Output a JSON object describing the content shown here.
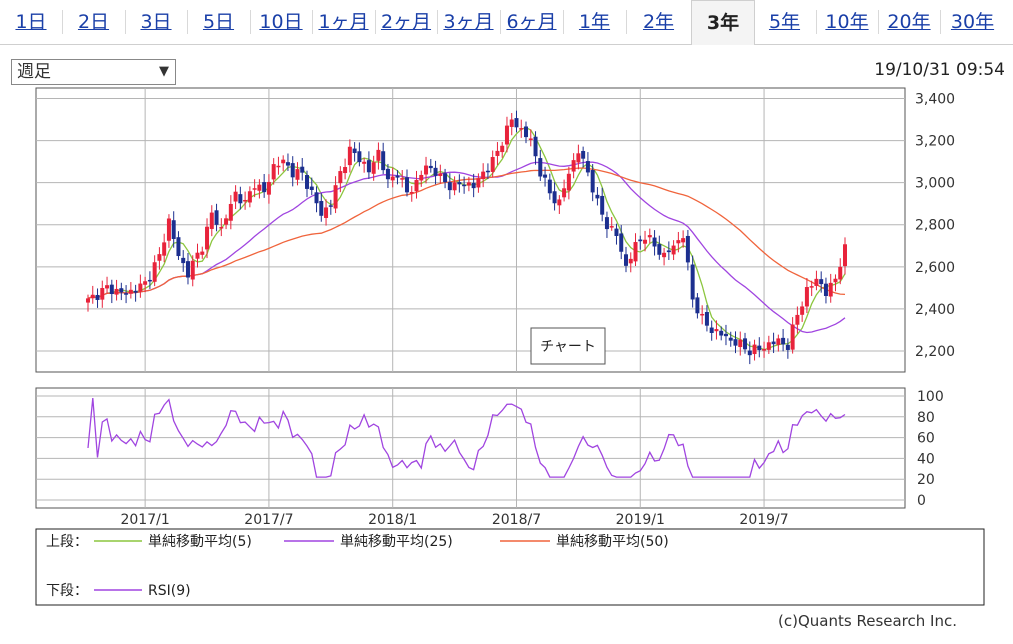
{
  "tabs": [
    {
      "label": "1日",
      "active": false
    },
    {
      "label": "2日",
      "active": false
    },
    {
      "label": "3日",
      "active": false
    },
    {
      "label": "5日",
      "active": false
    },
    {
      "label": "10日",
      "active": false
    },
    {
      "label": "1ヶ月",
      "active": false
    },
    {
      "label": "2ヶ月",
      "active": false
    },
    {
      "label": "3ヶ月",
      "active": false
    },
    {
      "label": "6ヶ月",
      "active": false
    },
    {
      "label": "1年",
      "active": false
    },
    {
      "label": "2年",
      "active": false
    },
    {
      "label": "3年",
      "active": true
    },
    {
      "label": "5年",
      "active": false
    },
    {
      "label": "10年",
      "active": false
    },
    {
      "label": "20年",
      "active": false
    },
    {
      "label": "30年",
      "active": false
    }
  ],
  "period_select": {
    "value": "週足",
    "arrow": "▼"
  },
  "timestamp": "19/10/31 09:54",
  "credit": "(c)Quants Research Inc.",
  "colors": {
    "up": "#e8233b",
    "down": "#1c2f8f",
    "ma5": "#8cc63f",
    "ma25": "#a045e0",
    "ma50": "#f0643c",
    "rsi": "#a045e0",
    "grid": "#b5b5b5",
    "frame": "#555555"
  },
  "chart_data": {
    "type": "candlestick",
    "title": "チャート",
    "x_tick_labels": [
      "2017/1",
      "2017/7",
      "2018/1",
      "2018/7",
      "2019/1",
      "2019/7"
    ],
    "x_ticks_week_index": [
      12,
      38,
      64,
      90,
      116,
      142
    ],
    "price_axis": {
      "ylim": [
        2100,
        3450
      ],
      "ticks": [
        "2,200",
        "2,400",
        "2,600",
        "2,800",
        "3,000",
        "3,200",
        "3,400"
      ],
      "tick_values": [
        2200,
        2400,
        2600,
        2800,
        3000,
        3200,
        3400
      ]
    },
    "price_keypoints_week_close": [
      [
        0,
        2440
      ],
      [
        4,
        2500
      ],
      [
        8,
        2470
      ],
      [
        12,
        2520
      ],
      [
        15,
        2650
      ],
      [
        17,
        2820
      ],
      [
        19,
        2650
      ],
      [
        21,
        2570
      ],
      [
        24,
        2700
      ],
      [
        26,
        2850
      ],
      [
        28,
        2780
      ],
      [
        31,
        2950
      ],
      [
        33,
        2900
      ],
      [
        35,
        3000
      ],
      [
        37,
        2950
      ],
      [
        39,
        3080
      ],
      [
        41,
        3100
      ],
      [
        43,
        3050
      ],
      [
        45,
        3040
      ],
      [
        47,
        2950
      ],
      [
        49,
        2850
      ],
      [
        51,
        2900
      ],
      [
        53,
        3050
      ],
      [
        55,
        3150
      ],
      [
        57,
        3120
      ],
      [
        59,
        3050
      ],
      [
        61,
        3150
      ],
      [
        63,
        3000
      ],
      [
        65,
        3050
      ],
      [
        67,
        2950
      ],
      [
        69,
        3000
      ],
      [
        71,
        3080
      ],
      [
        73,
        3050
      ],
      [
        75,
        3000
      ],
      [
        77,
        2980
      ],
      [
        79,
        3000
      ],
      [
        81,
        2980
      ],
      [
        83,
        3050
      ],
      [
        85,
        3100
      ],
      [
        87,
        3200
      ],
      [
        89,
        3300
      ],
      [
        91,
        3250
      ],
      [
        93,
        3200
      ],
      [
        95,
        3050
      ],
      [
        97,
        2950
      ],
      [
        99,
        2900
      ],
      [
        101,
        3050
      ],
      [
        103,
        3150
      ],
      [
        105,
        3050
      ],
      [
        107,
        2900
      ],
      [
        109,
        2800
      ],
      [
        111,
        2750
      ],
      [
        113,
        2600
      ],
      [
        115,
        2700
      ],
      [
        117,
        2750
      ],
      [
        119,
        2700
      ],
      [
        121,
        2650
      ],
      [
        123,
        2700
      ],
      [
        125,
        2750
      ],
      [
        127,
        2450
      ],
      [
        129,
        2350
      ],
      [
        131,
        2300
      ],
      [
        133,
        2280
      ],
      [
        135,
        2250
      ],
      [
        137,
        2230
      ],
      [
        139,
        2200
      ],
      [
        141,
        2210
      ],
      [
        143,
        2230
      ],
      [
        145,
        2250
      ],
      [
        147,
        2220
      ],
      [
        149,
        2380
      ],
      [
        151,
        2480
      ],
      [
        153,
        2550
      ],
      [
        155,
        2470
      ],
      [
        157,
        2550
      ],
      [
        159,
        2680
      ]
    ],
    "total_weeks": 160,
    "ma_series": [
      {
        "name": "単純移動平均(5)",
        "window": 5
      },
      {
        "name": "単純移動平均(25)",
        "window": 25
      },
      {
        "name": "単純移動平均(50)",
        "window": 50
      }
    ],
    "rsi_axis": {
      "ylim": [
        0,
        100
      ],
      "ticks": [
        "0",
        "20",
        "40",
        "60",
        "80",
        "100"
      ],
      "tick_values": [
        0,
        20,
        40,
        60,
        80,
        100
      ]
    },
    "rsi_series": {
      "name": "RSI(9)",
      "window": 9
    },
    "legend": {
      "upper_label": "上段：",
      "lower_label": "下段：",
      "ma5": "単純移動平均(5)",
      "ma25": "単純移動平均(25)",
      "ma50": "単純移動平均(50)",
      "rsi": "RSI(9)"
    }
  }
}
